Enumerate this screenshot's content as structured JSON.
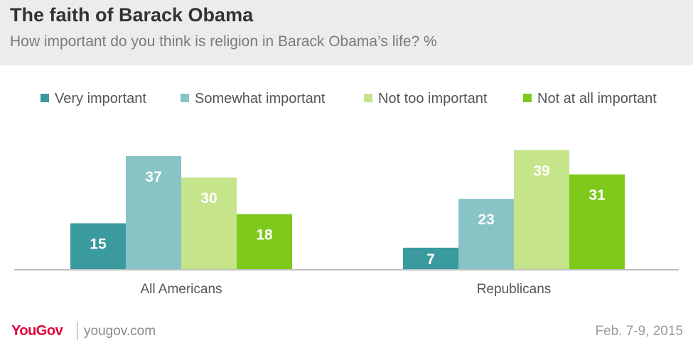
{
  "header": {
    "title": "The faith of Barack Obama",
    "subtitle": "How important do you think is religion in Barack Obama’s life? %"
  },
  "footer": {
    "brand": "YouGov",
    "site": "yougov.com",
    "date": "Feb. 7-9, 2015"
  },
  "chart_data": {
    "type": "bar",
    "categories": [
      "All Americans",
      "Republicans"
    ],
    "series": [
      {
        "name": "Very important",
        "values": [
          15,
          7
        ],
        "color": "#3a9a9e"
      },
      {
        "name": "Somewhat important",
        "values": [
          37,
          23
        ],
        "color": "#88c3c5"
      },
      {
        "name": "Not too important",
        "values": [
          30,
          39
        ],
        "color": "#c6e48a"
      },
      {
        "name": "Not at all important",
        "values": [
          18,
          31
        ],
        "color": "#7ec91c"
      }
    ],
    "ylim": [
      0,
      40
    ],
    "legend": "top",
    "grid": false
  }
}
